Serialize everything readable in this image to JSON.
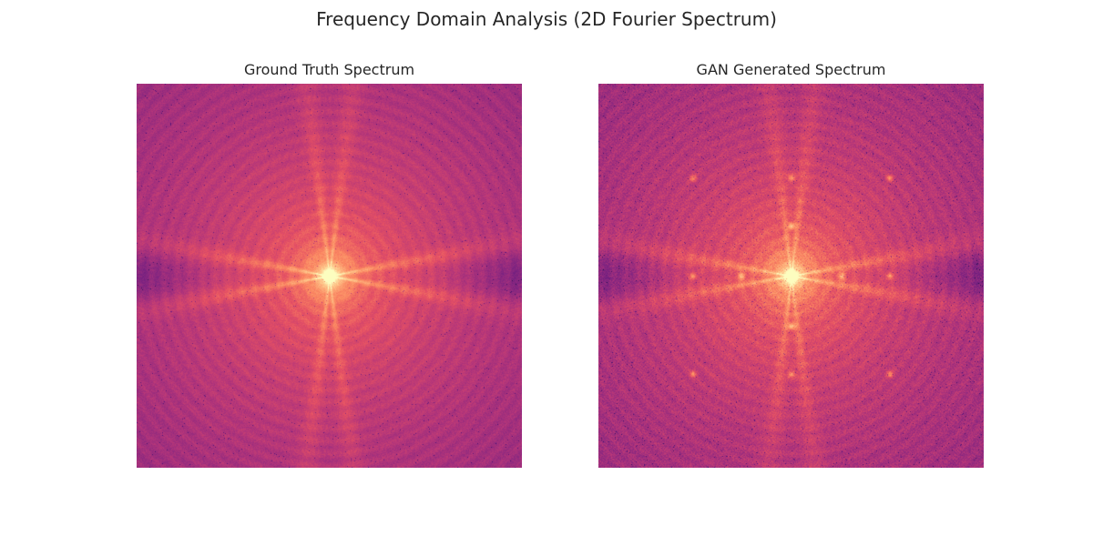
{
  "figure": {
    "title": "Frequency Domain Analysis (2D Fourier Spectrum)"
  },
  "chart_data": [
    {
      "type": "heatmap",
      "title": "Ground Truth Spectrum",
      "colormap": "magma",
      "centered_spectrum": true,
      "axes_visible": false,
      "grid": false,
      "legend": "none"
    },
    {
      "type": "heatmap",
      "title": "GAN Generated Spectrum",
      "colormap": "magma",
      "centered_spectrum": true,
      "axes_visible": false,
      "grid": false,
      "legend": "none",
      "artifacts": "periodic bright peaks and grid checkerboard noise"
    }
  ]
}
